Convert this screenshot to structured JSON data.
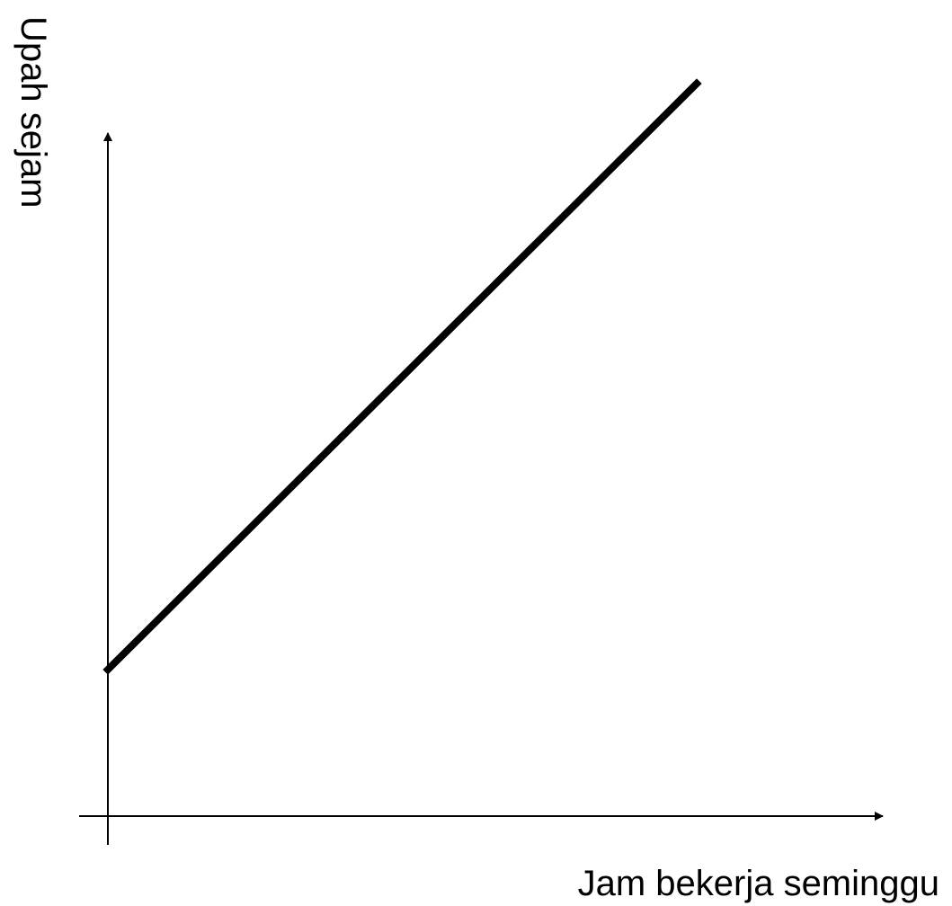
{
  "chart_data": {
    "type": "line",
    "title": "",
    "xlabel": "Jam bekerja seminggu",
    "ylabel": "Upah sejam",
    "grid": false,
    "series": [
      {
        "x": [
          0,
          1
        ],
        "y": [
          0.2,
          1.0
        ]
      }
    ],
    "xlim": [
      -0.05,
      1.27
    ],
    "ylim": [
      -0.05,
      0.97
    ]
  },
  "colors": {
    "line": "#000000",
    "axis": "#000000",
    "background": "#ffffff"
  }
}
